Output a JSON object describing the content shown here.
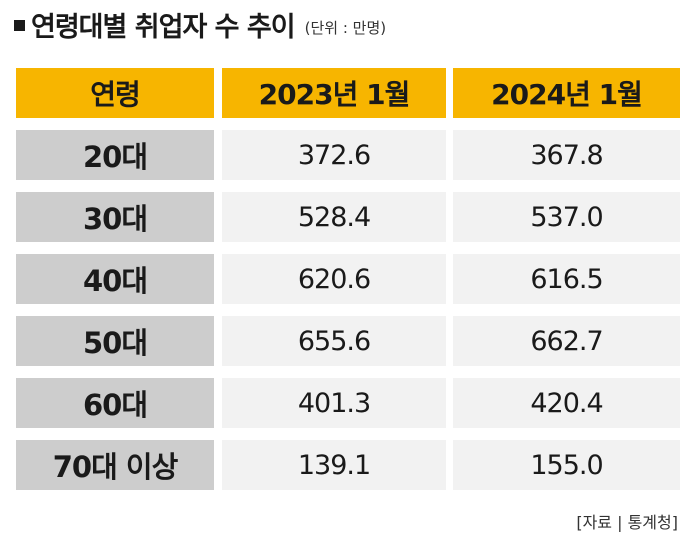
{
  "title": "연령대별 취업자 수 추이",
  "unit": "(단위 : 만명)",
  "source": "[자료 | 통계청]",
  "colors": {
    "header_bg": "#f7b500",
    "age_bg": "#cdcdcd",
    "value_bg": "#f2f2f2"
  },
  "chart_data": {
    "type": "table",
    "title": "연령대별 취업자 수 추이",
    "unit": "(단위 : 만명)",
    "columns": [
      "연령",
      "2023년 1월",
      "2024년 1월"
    ],
    "rows": [
      {
        "age": "20대",
        "v2023": "372.6",
        "v2024": "367.8"
      },
      {
        "age": "30대",
        "v2023": "528.4",
        "v2024": "537.0"
      },
      {
        "age": "40대",
        "v2023": "620.6",
        "v2024": "616.5"
      },
      {
        "age": "50대",
        "v2023": "655.6",
        "v2024": "662.7"
      },
      {
        "age": "60대",
        "v2023": "401.3",
        "v2024": "420.4"
      },
      {
        "age": "70대 이상",
        "v2023": "139.1",
        "v2024": "155.0"
      }
    ],
    "series": [
      {
        "name": "2023년 1월",
        "values": [
          372.6,
          528.4,
          620.6,
          655.6,
          401.3,
          139.1
        ]
      },
      {
        "name": "2024년 1월",
        "values": [
          367.8,
          537.0,
          616.5,
          662.7,
          420.4,
          155.0
        ]
      }
    ],
    "categories": [
      "20대",
      "30대",
      "40대",
      "50대",
      "60대",
      "70대 이상"
    ]
  }
}
